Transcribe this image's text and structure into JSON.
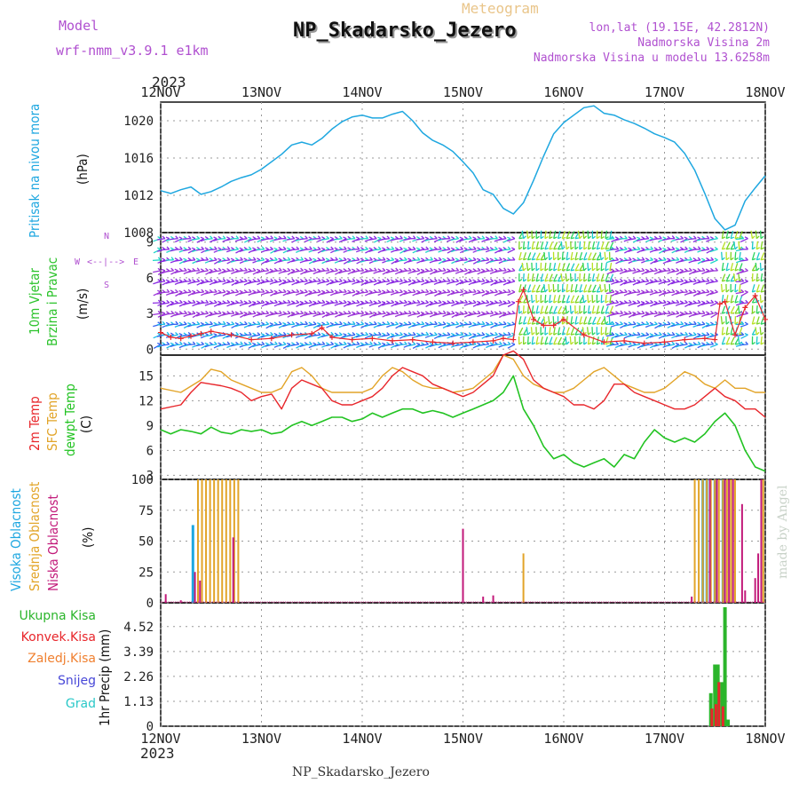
{
  "header": {
    "model_label": "Model",
    "model_name": "wrf-nmm_v3.9.1  e1km",
    "meteogram_label": "Meteogram",
    "station": "NP_Skadarsko_Jezero",
    "lonlat": "lon,lat (19.15E, 42.2812N)",
    "elevation": "Nadmorska Visina 2m",
    "model_elevation": "Nadmorska Visina u modelu 13.6258m"
  },
  "footer": {
    "station": "NP_Skadarsko_Jezero"
  },
  "credit": "made by Angel",
  "colors": {
    "pressure": "#1ea7e0",
    "temp2m": "#e8262b",
    "sfc": "#e2a428",
    "dewpt": "#22c322",
    "high_cloud": "#1ea7e0",
    "mid_cloud": "#e2a428",
    "low_cloud": "#c21a7a",
    "wind_label": "#2bc32b",
    "precip_total": "#2bb52b",
    "precip_conv": "#e8262b",
    "precip_frozen": "#f08030",
    "snow": "#4848d8",
    "hail": "#2bc8c8",
    "purple_text": "#b050d0"
  },
  "chart_data": {
    "type": "line",
    "year": "2023",
    "x_ticks": [
      "12NOV",
      "13NOV",
      "14NOV",
      "15NOV",
      "16NOV",
      "17NOV",
      "18NOV"
    ],
    "x_range": [
      0,
      6
    ],
    "panels": [
      {
        "id": "pressure",
        "labels": [
          "Pritisak na nivou mora",
          "(hPa)"
        ],
        "ylim": [
          1008,
          1022
        ],
        "yticks": [
          "1008",
          "1012",
          "1016",
          "1020"
        ],
        "series": [
          {
            "x": [
              0,
              0.1,
              0.2,
              0.3,
              0.4,
              0.5,
              0.6,
              0.7,
              0.8,
              0.9,
              1.0,
              1.2,
              1.3,
              1.4,
              1.5,
              1.6,
              1.7,
              1.8,
              1.9,
              2.0,
              2.1,
              2.2,
              2.3,
              2.4,
              2.5,
              2.6,
              2.7,
              2.8,
              2.9,
              3.0,
              3.1,
              3.2,
              3.3,
              3.4,
              3.5,
              3.6,
              3.7,
              3.8,
              3.9,
              4.0,
              4.1,
              4.2,
              4.3,
              4.4,
              4.5,
              4.6,
              4.7,
              4.8,
              4.9,
              5.0,
              5.1,
              5.2,
              5.3,
              5.4,
              5.5,
              5.6,
              5.7,
              5.8,
              5.9,
              6.0
            ],
            "y": [
              1012.5,
              1012.2,
              1012.6,
              1012.9,
              1012.1,
              1012.4,
              1012.9,
              1013.5,
              1013.9,
              1014.2,
              1014.8,
              1016.4,
              1017.4,
              1017.7,
              1017.4,
              1018.1,
              1019.1,
              1019.9,
              1020.4,
              1020.6,
              1020.3,
              1020.3,
              1020.7,
              1021.0,
              1020.0,
              1018.7,
              1017.9,
              1017.4,
              1016.7,
              1015.6,
              1014.4,
              1012.6,
              1012.1,
              1010.6,
              1010.0,
              1011.2,
              1013.6,
              1016.2,
              1018.6,
              1019.8,
              1020.6,
              1021.4,
              1021.6,
              1020.8,
              1020.6,
              1020.1,
              1019.7,
              1019.2,
              1018.6,
              1018.2,
              1017.7,
              1016.5,
              1014.7,
              1012.2,
              1009.5,
              1008.3,
              1008.8,
              1011.4,
              1012.8,
              1014.1
            ]
          }
        ]
      },
      {
        "id": "wind",
        "labels": [
          "10m Vjetar",
          "Brzina i Pravac",
          "(m/s)"
        ],
        "direction_legend": {
          "n": "N",
          "s": "S",
          "w": "W",
          "e": "E",
          "arrows": "<--|-->"
        },
        "ylim": [
          -0.5,
          9.8
        ],
        "yticks": [
          "0",
          "3",
          "6",
          "9"
        ],
        "series": [
          {
            "name": "speed",
            "x": [
              0,
              0.1,
              0.2,
              0.3,
              0.4,
              0.5,
              0.7,
              0.9,
              1.1,
              1.3,
              1.5,
              1.6,
              1.7,
              1.9,
              2.1,
              2.3,
              2.5,
              2.7,
              2.9,
              3.1,
              3.3,
              3.4,
              3.5,
              3.55,
              3.6,
              3.7,
              3.8,
              3.9,
              4.0,
              4.2,
              4.4,
              4.6,
              4.8,
              5.0,
              5.2,
              5.4,
              5.5,
              5.55,
              5.6,
              5.7,
              5.8,
              5.9,
              6.0
            ],
            "y": [
              1.4,
              1.0,
              0.9,
              1.1,
              1.3,
              1.5,
              1.2,
              0.8,
              0.9,
              1.2,
              1.3,
              1.8,
              1.0,
              0.8,
              0.9,
              0.7,
              0.8,
              0.6,
              0.5,
              0.6,
              0.7,
              0.9,
              0.8,
              4.0,
              5.0,
              2.5,
              2.0,
              2.0,
              2.5,
              1.2,
              0.6,
              0.7,
              0.5,
              0.6,
              0.8,
              0.9,
              0.8,
              3.8,
              4.0,
              1.2,
              3.5,
              4.5,
              2.5
            ]
          }
        ]
      },
      {
        "id": "temp",
        "labels": [
          "2m Temp",
          "SFC Temp",
          "dewpt Temp",
          "(C)"
        ],
        "ylim": [
          2.5,
          17.5
        ],
        "yticks": [
          "3",
          "6",
          "9",
          "12",
          "15"
        ],
        "series": [
          {
            "name": "2m Temp",
            "x": [
              0,
              0.2,
              0.3,
              0.4,
              0.5,
              0.6,
              0.7,
              0.8,
              0.9,
              1.0,
              1.1,
              1.2,
              1.3,
              1.4,
              1.5,
              1.6,
              1.7,
              1.8,
              1.9,
              2.0,
              2.1,
              2.2,
              2.3,
              2.4,
              2.5,
              2.6,
              2.7,
              2.8,
              2.9,
              3.0,
              3.1,
              3.2,
              3.3,
              3.4,
              3.5,
              3.6,
              3.7,
              3.8,
              3.9,
              4.0,
              4.1,
              4.2,
              4.3,
              4.4,
              4.5,
              4.6,
              4.7,
              4.8,
              4.9,
              5.0,
              5.1,
              5.2,
              5.3,
              5.4,
              5.5,
              5.6,
              5.7,
              5.8,
              5.9,
              6.0
            ],
            "y": [
              11.0,
              11.5,
              13.0,
              14.2,
              14.0,
              13.8,
              13.5,
              13.0,
              12.0,
              12.5,
              12.8,
              11.0,
              13.5,
              14.5,
              14.0,
              13.5,
              12.0,
              11.5,
              11.5,
              12.0,
              12.5,
              13.5,
              15.0,
              16.0,
              15.5,
              15.0,
              14.0,
              13.5,
              13.0,
              12.5,
              13.0,
              14.0,
              15.0,
              17.5,
              18.0,
              17.0,
              14.5,
              13.5,
              13.0,
              12.5,
              11.5,
              11.5,
              11.0,
              12.0,
              14.0,
              14.0,
              13.0,
              12.5,
              12.0,
              11.5,
              11.0,
              11.0,
              11.5,
              12.5,
              13.5,
              12.5,
              12.0,
              11.0,
              11.0,
              10.0
            ]
          },
          {
            "name": "SFC Temp",
            "x": [
              0,
              0.2,
              0.4,
              0.5,
              0.6,
              0.7,
              0.8,
              0.9,
              1.0,
              1.1,
              1.2,
              1.3,
              1.4,
              1.5,
              1.6,
              1.7,
              1.8,
              1.9,
              2.0,
              2.1,
              2.2,
              2.3,
              2.4,
              2.5,
              2.6,
              2.7,
              2.8,
              2.9,
              3.0,
              3.1,
              3.2,
              3.3,
              3.4,
              3.5,
              3.6,
              3.7,
              3.8,
              3.9,
              4.0,
              4.1,
              4.2,
              4.3,
              4.4,
              4.5,
              4.6,
              4.7,
              4.8,
              4.9,
              5.0,
              5.1,
              5.2,
              5.3,
              5.4,
              5.5,
              5.6,
              5.7,
              5.8,
              5.9,
              6.0
            ],
            "y": [
              13.5,
              13.0,
              14.5,
              15.8,
              15.5,
              14.5,
              14.0,
              13.5,
              13.0,
              13.0,
              13.5,
              15.5,
              16.0,
              15.0,
              13.5,
              13.0,
              13.0,
              13.0,
              13.0,
              13.5,
              15.0,
              16.0,
              15.5,
              14.5,
              13.8,
              13.5,
              13.5,
              13.0,
              13.2,
              13.5,
              14.5,
              15.5,
              17.5,
              17.0,
              15.0,
              14.0,
              13.5,
              13.0,
              13.0,
              13.5,
              14.5,
              15.5,
              16.0,
              15.0,
              14.0,
              13.5,
              13.0,
              13.0,
              13.5,
              14.5,
              15.5,
              15.0,
              14.0,
              13.5,
              14.5,
              13.5,
              13.5,
              13.0,
              13.0
            ]
          },
          {
            "name": "dewpt Temp",
            "x": [
              0,
              0.1,
              0.2,
              0.3,
              0.4,
              0.5,
              0.6,
              0.7,
              0.8,
              0.9,
              1.0,
              1.1,
              1.2,
              1.3,
              1.4,
              1.5,
              1.6,
              1.7,
              1.8,
              1.9,
              2.0,
              2.1,
              2.2,
              2.3,
              2.4,
              2.5,
              2.6,
              2.7,
              2.8,
              2.9,
              3.0,
              3.1,
              3.2,
              3.3,
              3.4,
              3.5,
              3.6,
              3.7,
              3.8,
              3.9,
              4.0,
              4.1,
              4.2,
              4.3,
              4.4,
              4.5,
              4.6,
              4.7,
              4.8,
              4.9,
              5.0,
              5.1,
              5.2,
              5.3,
              5.4,
              5.5,
              5.6,
              5.7,
              5.8,
              5.9,
              6.0
            ],
            "y": [
              8.5,
              8.0,
              8.5,
              8.3,
              8.0,
              8.8,
              8.2,
              8.0,
              8.5,
              8.3,
              8.5,
              8.0,
              8.2,
              9.0,
              9.5,
              9.0,
              9.5,
              10.0,
              10.0,
              9.5,
              9.8,
              10.5,
              10.0,
              10.5,
              11.0,
              11.0,
              10.5,
              10.8,
              10.5,
              10.0,
              10.5,
              11.0,
              11.5,
              12.0,
              13.0,
              15.0,
              11.0,
              9.0,
              6.5,
              5.0,
              5.5,
              4.5,
              4.0,
              4.5,
              5.0,
              4.0,
              5.5,
              5.0,
              7.0,
              8.5,
              7.5,
              7.0,
              7.5,
              7.0,
              8.0,
              9.5,
              10.5,
              9.0,
              6.0,
              4.0,
              3.5
            ]
          }
        ]
      },
      {
        "id": "clouds",
        "labels": [
          "Visoka Oblacnost",
          "Srednja Oblacnost",
          "Niska Oblacnost",
          "(%)"
        ],
        "ylim": [
          0,
          100
        ],
        "yticks": [
          "0",
          "25",
          "50",
          "75",
          "100"
        ],
        "series": [
          {
            "name": "Visoka Oblacnost",
            "x": [
              0.32,
              5.38,
              5.42,
              5.5,
              5.58
            ],
            "values": [
              63,
              100,
              100,
              100,
              100
            ]
          },
          {
            "name": "Srednja Oblacnost",
            "x": [
              0.37,
              0.41,
              0.45,
              0.49,
              0.53,
              0.57,
              0.61,
              0.65,
              0.69,
              0.73,
              0.77,
              3.6,
              5.3,
              5.34,
              5.38,
              5.42,
              5.46,
              5.5,
              5.54,
              5.58,
              5.62,
              5.66,
              5.7,
              5.98
            ],
            "values": [
              100,
              100,
              100,
              100,
              100,
              100,
              100,
              100,
              100,
              100,
              100,
              40,
              100,
              100,
              100,
              100,
              100,
              100,
              100,
              100,
              100,
              100,
              100,
              100
            ]
          },
          {
            "name": "Niska Oblacnost",
            "x": [
              0.05,
              0.2,
              0.34,
              0.39,
              0.72,
              3.0,
              3.2,
              3.3,
              5.27,
              5.45,
              5.52,
              5.6,
              5.64,
              5.68,
              5.77,
              5.8,
              5.9,
              5.93,
              5.96
            ],
            "values": [
              7,
              2,
              25,
              18,
              53,
              60,
              5,
              6,
              5,
              100,
              100,
              100,
              100,
              100,
              80,
              10,
              20,
              40,
              100
            ]
          }
        ]
      },
      {
        "id": "precip",
        "labels": [
          "1hr Precip (mm)"
        ],
        "legend": [
          "Ukupna Kisa",
          "Konvek.Kisa",
          "Zaledj.Kisa",
          "Snijeg",
          "Grad"
        ],
        "ylim": [
          0,
          5.6
        ],
        "yticks": [
          "0",
          "1.13",
          "2.26",
          "3.39",
          "4.52"
        ],
        "series": [
          {
            "name": "Ukupna Kisa",
            "x": [
              5.46,
              5.5,
              5.53,
              5.57,
              5.6,
              5.63
            ],
            "values": [
              1.5,
              2.8,
              2.8,
              2.0,
              5.4,
              0.3
            ]
          },
          {
            "name": "Konvek.Kisa",
            "x": [
              5.47,
              5.51,
              5.54,
              5.58
            ],
            "values": [
              0.8,
              1.0,
              2.0,
              0.9
            ]
          }
        ]
      }
    ]
  }
}
